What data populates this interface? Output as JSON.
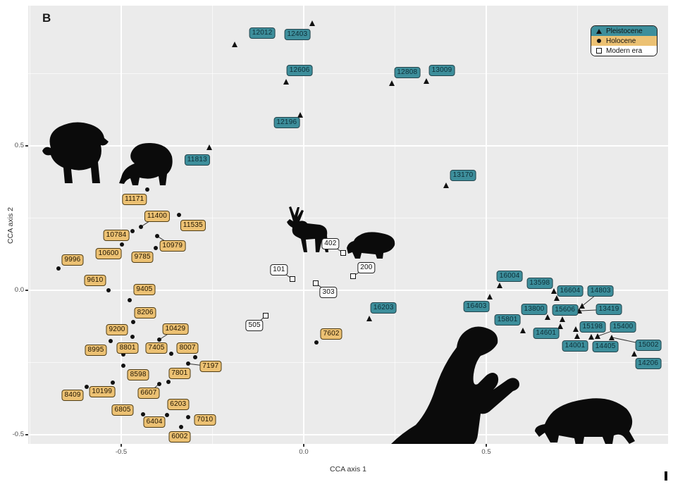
{
  "panel_label": "B",
  "axes": {
    "x_title": "CCA axis 1",
    "y_title": "CCA axis 2"
  },
  "legend": {
    "items": [
      {
        "label": "Pleistocene",
        "marker": "triangle",
        "color": "#3d8e9b"
      },
      {
        "label": "Holocene",
        "marker": "circle",
        "color": "#ecc173"
      },
      {
        "label": "Modern era",
        "marker": "open-square",
        "color": "#ffffff"
      }
    ]
  },
  "colors": {
    "pleistocene_label": "#3d8e9b",
    "holocene_label": "#ecc173",
    "modern_label": "#ffffff",
    "panel_background": "#ebebeb",
    "gridline": "#ffffff",
    "marker": "#111111"
  },
  "silhouettes": [
    "bear",
    "capybara",
    "deer",
    "tapir",
    "ground-sloth",
    "glyptodont"
  ],
  "chart_data": {
    "type": "scatter",
    "title": "",
    "xlabel": "CCA axis 1",
    "ylabel": "CCA axis 2",
    "xlim": [
      -0.755,
      1.0
    ],
    "ylim": [
      -0.54,
      0.985
    ],
    "grid": true,
    "legend_position": "top-right",
    "x_ticks": [
      {
        "v": -0.5,
        "label": "-0.5"
      },
      {
        "v": 0.0,
        "label": "0.0"
      },
      {
        "v": 0.5,
        "label": "0.5"
      }
    ],
    "y_ticks": [
      {
        "v": 0.5,
        "label": "0.5"
      },
      {
        "v": 0.0,
        "label": "0.0"
      },
      {
        "v": -0.5,
        "label": "-0.5"
      }
    ],
    "x_minor_ticks": [
      -0.75,
      -0.25,
      0.25,
      0.75
    ],
    "y_minor_ticks": [
      0.75,
      0.25,
      -0.25
    ],
    "series": [
      {
        "name": "Pleistocene",
        "marker": "triangle",
        "label_style": "s-pleistocene",
        "points": [
          {
            "id": "12012",
            "x": -0.189,
            "y": 0.851,
            "dx": 39,
            "dy": -16
          },
          {
            "id": "12403",
            "x": 0.023,
            "y": 0.924,
            "dx": -21,
            "dy": 16
          },
          {
            "id": "12606",
            "x": -0.048,
            "y": 0.722,
            "dx": 19,
            "dy": -16
          },
          {
            "id": "12808",
            "x": 0.241,
            "y": 0.717,
            "dx": 22,
            "dy": -15
          },
          {
            "id": "13009",
            "x": 0.336,
            "y": 0.724,
            "dx": 22,
            "dy": -15
          },
          {
            "id": "12196",
            "x": -0.01,
            "y": 0.607,
            "dx": -19,
            "dy": 11
          },
          {
            "id": "11813",
            "x": -0.259,
            "y": 0.495,
            "dx": -17,
            "dy": 18
          },
          {
            "id": "13170",
            "x": 0.39,
            "y": 0.363,
            "dx": 24,
            "dy": -14
          },
          {
            "id": "16203",
            "x": 0.18,
            "y": -0.098,
            "dx": 20,
            "dy": -15
          },
          {
            "id": "16004",
            "x": 0.537,
            "y": 0.017,
            "dx": 14,
            "dy": -13
          },
          {
            "id": "13598",
            "x": 0.685,
            "y": -0.002,
            "dx": -20,
            "dy": -11
          },
          {
            "id": "16604",
            "x": 0.693,
            "y": -0.027,
            "dx": 19,
            "dy": -10
          },
          {
            "id": "14803",
            "x": 0.763,
            "y": -0.054,
            "dx": 26,
            "dy": -21,
            "leader": true
          },
          {
            "id": "16403",
            "x": 0.51,
            "y": -0.022,
            "dx": -19,
            "dy": 14
          },
          {
            "id": "13800",
            "x": 0.668,
            "y": -0.093,
            "dx": -19,
            "dy": -11
          },
          {
            "id": "15606",
            "x": 0.708,
            "y": -0.1,
            "dx": 4,
            "dy": -13
          },
          {
            "id": "13419",
            "x": 0.755,
            "y": -0.071,
            "dx": 42,
            "dy": -2,
            "leader": true
          },
          {
            "id": "15801",
            "x": 0.703,
            "y": -0.124,
            "dx": -75,
            "dy": -9
          },
          {
            "id": "14601",
            "x": 0.6,
            "y": -0.139,
            "dx": 33,
            "dy": 4
          },
          {
            "id": "15198",
            "x": 0.745,
            "y": -0.134,
            "dx": 24,
            "dy": -3
          },
          {
            "id": "14001",
            "x": 0.749,
            "y": -0.159,
            "dx": -3,
            "dy": 14
          },
          {
            "id": "14405",
            "x": 0.788,
            "y": -0.161,
            "dx": 20,
            "dy": 14
          },
          {
            "id": "15400",
            "x": 0.805,
            "y": -0.159,
            "dx": 36,
            "dy": -13,
            "leader": true
          },
          {
            "id": "15002",
            "x": 0.844,
            "y": -0.163,
            "dx": 52,
            "dy": 11,
            "leader": true
          },
          {
            "id": "14206",
            "x": 0.905,
            "y": -0.22,
            "dx": 20,
            "dy": 14
          }
        ]
      },
      {
        "name": "Holocene",
        "marker": "circle",
        "label_style": "s-holocene",
        "points": [
          {
            "id": "11171",
            "x": -0.429,
            "y": 0.349,
            "dx": -18,
            "dy": 14
          },
          {
            "id": "11400",
            "x": -0.446,
            "y": 0.22,
            "dx": 23,
            "dy": -15,
            "leader": true
          },
          {
            "id": "11535",
            "x": -0.342,
            "y": 0.261,
            "dx": 20,
            "dy": 15
          },
          {
            "id": "10784",
            "x": -0.469,
            "y": 0.205,
            "dx": -23,
            "dy": 6
          },
          {
            "id": "10979",
            "x": -0.402,
            "y": 0.188,
            "dx": 22,
            "dy": 14,
            "leader": true
          },
          {
            "id": "10600",
            "x": -0.498,
            "y": 0.159,
            "dx": -19,
            "dy": 13
          },
          {
            "id": "9785",
            "x": -0.405,
            "y": 0.146,
            "dx": -19,
            "dy": 13
          },
          {
            "id": "9996",
            "x": -0.672,
            "y": 0.076,
            "dx": 20,
            "dy": -12
          },
          {
            "id": "9610",
            "x": -0.535,
            "y": 0.0,
            "dx": -19,
            "dy": -14
          },
          {
            "id": "9405",
            "x": -0.477,
            "y": -0.034,
            "dx": 21,
            "dy": -15
          },
          {
            "id": "8206",
            "x": -0.467,
            "y": -0.11,
            "dx": 17,
            "dy": -13
          },
          {
            "id": "9200",
            "x": -0.469,
            "y": -0.161,
            "dx": -22,
            "dy": -10
          },
          {
            "id": "10429",
            "x": -0.396,
            "y": -0.171,
            "dx": 23,
            "dy": -15,
            "leader": true
          },
          {
            "id": "8995",
            "x": -0.529,
            "y": -0.176,
            "dx": -21,
            "dy": 13
          },
          {
            "id": "8801",
            "x": -0.494,
            "y": -0.222,
            "dx": 6,
            "dy": -9
          },
          {
            "id": "7405",
            "x": -0.363,
            "y": -0.22,
            "dx": -21,
            "dy": -8
          },
          {
            "id": "8007",
            "x": -0.297,
            "y": -0.232,
            "dx": -11,
            "dy": -13
          },
          {
            "id": "7197",
            "x": -0.317,
            "y": -0.254,
            "dx": 32,
            "dy": 4,
            "leader": true
          },
          {
            "id": "8598",
            "x": -0.494,
            "y": -0.261,
            "dx": 21,
            "dy": 13
          },
          {
            "id": "7801",
            "x": -0.371,
            "y": -0.317,
            "dx": 16,
            "dy": -12
          },
          {
            "id": "10199",
            "x": -0.595,
            "y": -0.334,
            "dx": 22,
            "dy": 7
          },
          {
            "id": "8409",
            "x": -0.523,
            "y": -0.32,
            "dx": -57,
            "dy": 18
          },
          {
            "id": "6607",
            "x": -0.396,
            "y": -0.324,
            "dx": -15,
            "dy": 13,
            "leader": true
          },
          {
            "id": "6805",
            "x": -0.44,
            "y": -0.429,
            "dx": -29,
            "dy": -6
          },
          {
            "id": "6203",
            "x": -0.375,
            "y": -0.432,
            "dx": 16,
            "dy": -15
          },
          {
            "id": "7010",
            "x": -0.317,
            "y": -0.439,
            "dx": 24,
            "dy": 4
          },
          {
            "id": "6404",
            "x": -0.409,
            "y": -0.456,
            "dx": 0,
            "dy": 0
          },
          {
            "id": "6002",
            "x": -0.336,
            "y": -0.473,
            "dx": -2,
            "dy": 14
          },
          {
            "id": "7602",
            "x": 0.035,
            "y": -0.18,
            "dx": 21,
            "dy": -12
          }
        ]
      },
      {
        "name": "Modern era",
        "marker": "open-square",
        "label_style": "s-modern",
        "points": [
          {
            "id": "402",
            "x": 0.108,
            "y": 0.129,
            "dx": -18,
            "dy": -13,
            "leader": true
          },
          {
            "id": "101",
            "x": -0.031,
            "y": 0.039,
            "dx": -19,
            "dy": -13,
            "leader": true
          },
          {
            "id": "200",
            "x": 0.135,
            "y": 0.049,
            "dx": 19,
            "dy": -12,
            "leader": true
          },
          {
            "id": "303",
            "x": 0.033,
            "y": 0.024,
            "dx": 18,
            "dy": 13,
            "leader": true
          },
          {
            "id": "505",
            "x": -0.104,
            "y": -0.088,
            "dx": -16,
            "dy": 14,
            "leader": true
          }
        ]
      }
    ]
  }
}
